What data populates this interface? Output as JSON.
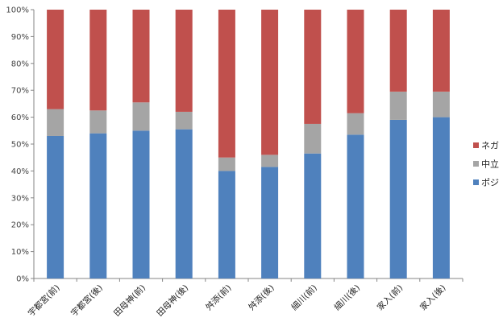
{
  "chart_data": {
    "type": "bar",
    "stacked": true,
    "percent": true,
    "title": "",
    "xlabel": "",
    "ylabel": "",
    "ylim": [
      0,
      100
    ],
    "yticks": [
      "0%",
      "10%",
      "20%",
      "30%",
      "40%",
      "50%",
      "60%",
      "70%",
      "80%",
      "90%",
      "100%"
    ],
    "grid": false,
    "legend_position": "right",
    "categories": [
      "宇都宮(前)",
      "宇都宮(後)",
      "田母神(前)",
      "田母神(後)",
      "舛添(前)",
      "舛添(後)",
      "細川(前)",
      "細川(後)",
      "家入(前)",
      "家入(後)"
    ],
    "series": [
      {
        "name": "ポジ",
        "color": "#4F81BD",
        "values": [
          53,
          54,
          55,
          55.5,
          40,
          41.5,
          46.5,
          53.5,
          59,
          60
        ]
      },
      {
        "name": "中立",
        "color": "#A5A5A5",
        "values": [
          10,
          8.5,
          10.5,
          6.5,
          5,
          4.5,
          11,
          8,
          10.5,
          9.5
        ]
      },
      {
        "name": "ネガ",
        "color": "#C0504D",
        "values": [
          37,
          37.5,
          34.5,
          38,
          55,
          54,
          42.5,
          38.5,
          30.5,
          30.5
        ]
      }
    ],
    "legend_order": [
      "ネガ",
      "中立",
      "ポジ"
    ]
  }
}
